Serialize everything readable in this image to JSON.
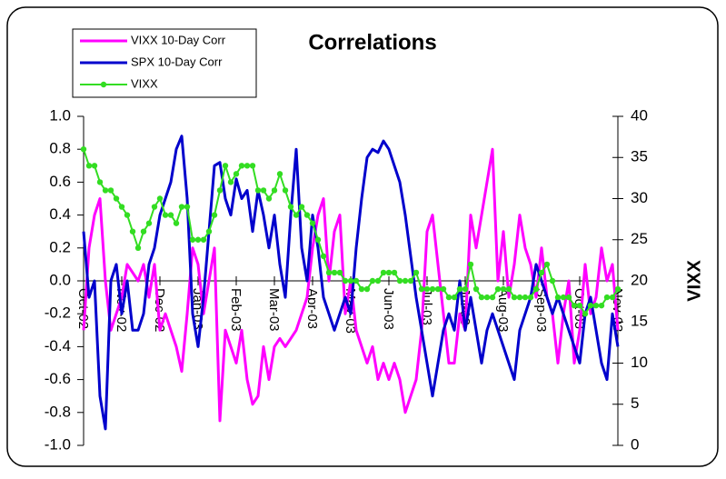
{
  "chart_data": {
    "type": "line",
    "title": "Correlations",
    "y2label": "VIXX",
    "categories": [
      "Oct-02",
      null,
      null,
      null,
      null,
      null,
      null,
      "Nov-02",
      null,
      null,
      null,
      null,
      null,
      null,
      "Dec-02",
      null,
      null,
      null,
      null,
      null,
      null,
      "Jan-03",
      null,
      null,
      null,
      null,
      null,
      null,
      "Feb-03",
      null,
      null,
      null,
      null,
      null,
      null,
      "Mar-03",
      null,
      null,
      null,
      null,
      null,
      null,
      "Apr-03",
      null,
      null,
      null,
      null,
      null,
      null,
      "May-03",
      null,
      null,
      null,
      null,
      null,
      null,
      "Jun-03",
      null,
      null,
      null,
      null,
      null,
      null,
      "Jul-03",
      null,
      null,
      null,
      null,
      null,
      null,
      "Jul-03",
      null,
      null,
      null,
      null,
      null,
      null,
      "Aug-03",
      null,
      null,
      null,
      null,
      null,
      null,
      "Sep-03",
      null,
      null,
      null,
      null,
      null,
      null,
      "Oct-03",
      null,
      null,
      null,
      null,
      null,
      null,
      "Nov-03"
    ],
    "series": [
      {
        "name": "VIXX 10-Day Corr",
        "color": "#ff00ff",
        "values": [
          -0.3,
          0.2,
          0.4,
          0.5,
          0.0,
          -0.3,
          -0.2,
          -0.1,
          0.1,
          0.05,
          0.0,
          0.1,
          -0.1,
          0.1,
          -0.3,
          -0.2,
          -0.3,
          -0.4,
          -0.55,
          -0.2,
          0.2,
          0.1,
          -0.2,
          0.0,
          0.2,
          -0.85,
          -0.3,
          -0.4,
          -0.5,
          -0.3,
          -0.6,
          -0.75,
          -0.7,
          -0.4,
          -0.6,
          -0.4,
          -0.35,
          -0.4,
          -0.35,
          -0.3,
          -0.2,
          -0.1,
          0.2,
          0.4,
          0.5,
          0.0,
          0.3,
          0.4,
          -0.2,
          0.0,
          -0.3,
          -0.4,
          -0.5,
          -0.4,
          -0.6,
          -0.5,
          -0.6,
          -0.5,
          -0.6,
          -0.8,
          -0.7,
          -0.6,
          -0.3,
          0.3,
          0.4,
          0.1,
          -0.2,
          -0.5,
          -0.5,
          -0.2,
          -0.3,
          0.4,
          0.2,
          0.4,
          0.6,
          0.8,
          0.0,
          0.3,
          -0.1,
          0.1,
          0.4,
          0.2,
          0.1,
          -0.1,
          0.2,
          -0.1,
          -0.2,
          -0.5,
          -0.2,
          0.0,
          -0.5,
          -0.3,
          0.1,
          -0.2,
          -0.1,
          0.2,
          0.0,
          0.1,
          -0.3
        ]
      },
      {
        "name": "SPX 10-Day Corr",
        "color": "#0000cc",
        "values": [
          0.3,
          -0.1,
          0.0,
          -0.7,
          -0.9,
          0.0,
          0.1,
          -0.2,
          0.0,
          -0.3,
          -0.3,
          -0.2,
          0.1,
          0.2,
          0.4,
          0.5,
          0.6,
          0.8,
          0.88,
          0.5,
          -0.2,
          -0.4,
          -0.1,
          0.3,
          0.7,
          0.72,
          0.5,
          0.4,
          0.62,
          0.5,
          0.55,
          0.3,
          0.55,
          0.4,
          0.2,
          0.4,
          0.1,
          -0.1,
          0.4,
          0.8,
          0.2,
          0.0,
          0.4,
          0.2,
          -0.1,
          -0.2,
          -0.3,
          -0.2,
          -0.1,
          -0.2,
          0.2,
          0.5,
          0.75,
          0.8,
          0.78,
          0.85,
          0.8,
          0.7,
          0.6,
          0.4,
          0.15,
          -0.1,
          -0.3,
          -0.5,
          -0.7,
          -0.5,
          -0.3,
          -0.2,
          -0.3,
          0.0,
          -0.3,
          -0.1,
          -0.3,
          -0.5,
          -0.3,
          -0.2,
          -0.3,
          -0.4,
          -0.5,
          -0.6,
          -0.3,
          -0.2,
          -0.1,
          0.1,
          0.0,
          -0.1,
          -0.2,
          -0.1,
          -0.2,
          -0.3,
          -0.4,
          -0.5,
          -0.2,
          -0.1,
          -0.3,
          -0.5,
          -0.6,
          -0.2,
          -0.4
        ]
      },
      {
        "name": "VIXX",
        "color": "#33dd22",
        "axis": "y2",
        "markers": true,
        "values": [
          36,
          34,
          34,
          32,
          31,
          31,
          30,
          29,
          28,
          26,
          24,
          26,
          27,
          29,
          30,
          28,
          28,
          27,
          29,
          29,
          25,
          25,
          25,
          26,
          28,
          31,
          34,
          32,
          33,
          34,
          34,
          34,
          31,
          31,
          30,
          31,
          33,
          31,
          29,
          28,
          29,
          28,
          27,
          25,
          23,
          21,
          21,
          21,
          20,
          20,
          20,
          19,
          19,
          20,
          20,
          21,
          21,
          21,
          20,
          20,
          20,
          21,
          19,
          19,
          19,
          19,
          19,
          18,
          18,
          19,
          19,
          22,
          19,
          18,
          18,
          18,
          19,
          19,
          19,
          18,
          18,
          18,
          18,
          19,
          21,
          22,
          20,
          18,
          18,
          18,
          17,
          17,
          16,
          17,
          17,
          17,
          18,
          18,
          19
        ]
      }
    ],
    "ylim": [
      -1,
      1
    ],
    "yticks": [
      {
        "value": -1,
        "label": "-1.0"
      },
      {
        "value": -0.8,
        "label": "-0.8"
      },
      {
        "value": -0.6,
        "label": "-0.6"
      },
      {
        "value": -0.4,
        "label": "-0.4"
      },
      {
        "value": -0.2,
        "label": "-0.2"
      },
      {
        "value": 0,
        "label": "0.0"
      },
      {
        "value": 0.2,
        "label": "0.2"
      },
      {
        "value": 0.4,
        "label": "0.4"
      },
      {
        "value": 0.6,
        "label": "0.6"
      },
      {
        "value": 0.8,
        "label": "0.8"
      },
      {
        "value": 1,
        "label": "1.0"
      }
    ],
    "y2lim": [
      0,
      40
    ],
    "y2ticks": [
      0,
      5,
      10,
      15,
      20,
      25,
      30,
      35,
      40
    ],
    "legend": "top-left",
    "grid": false
  }
}
